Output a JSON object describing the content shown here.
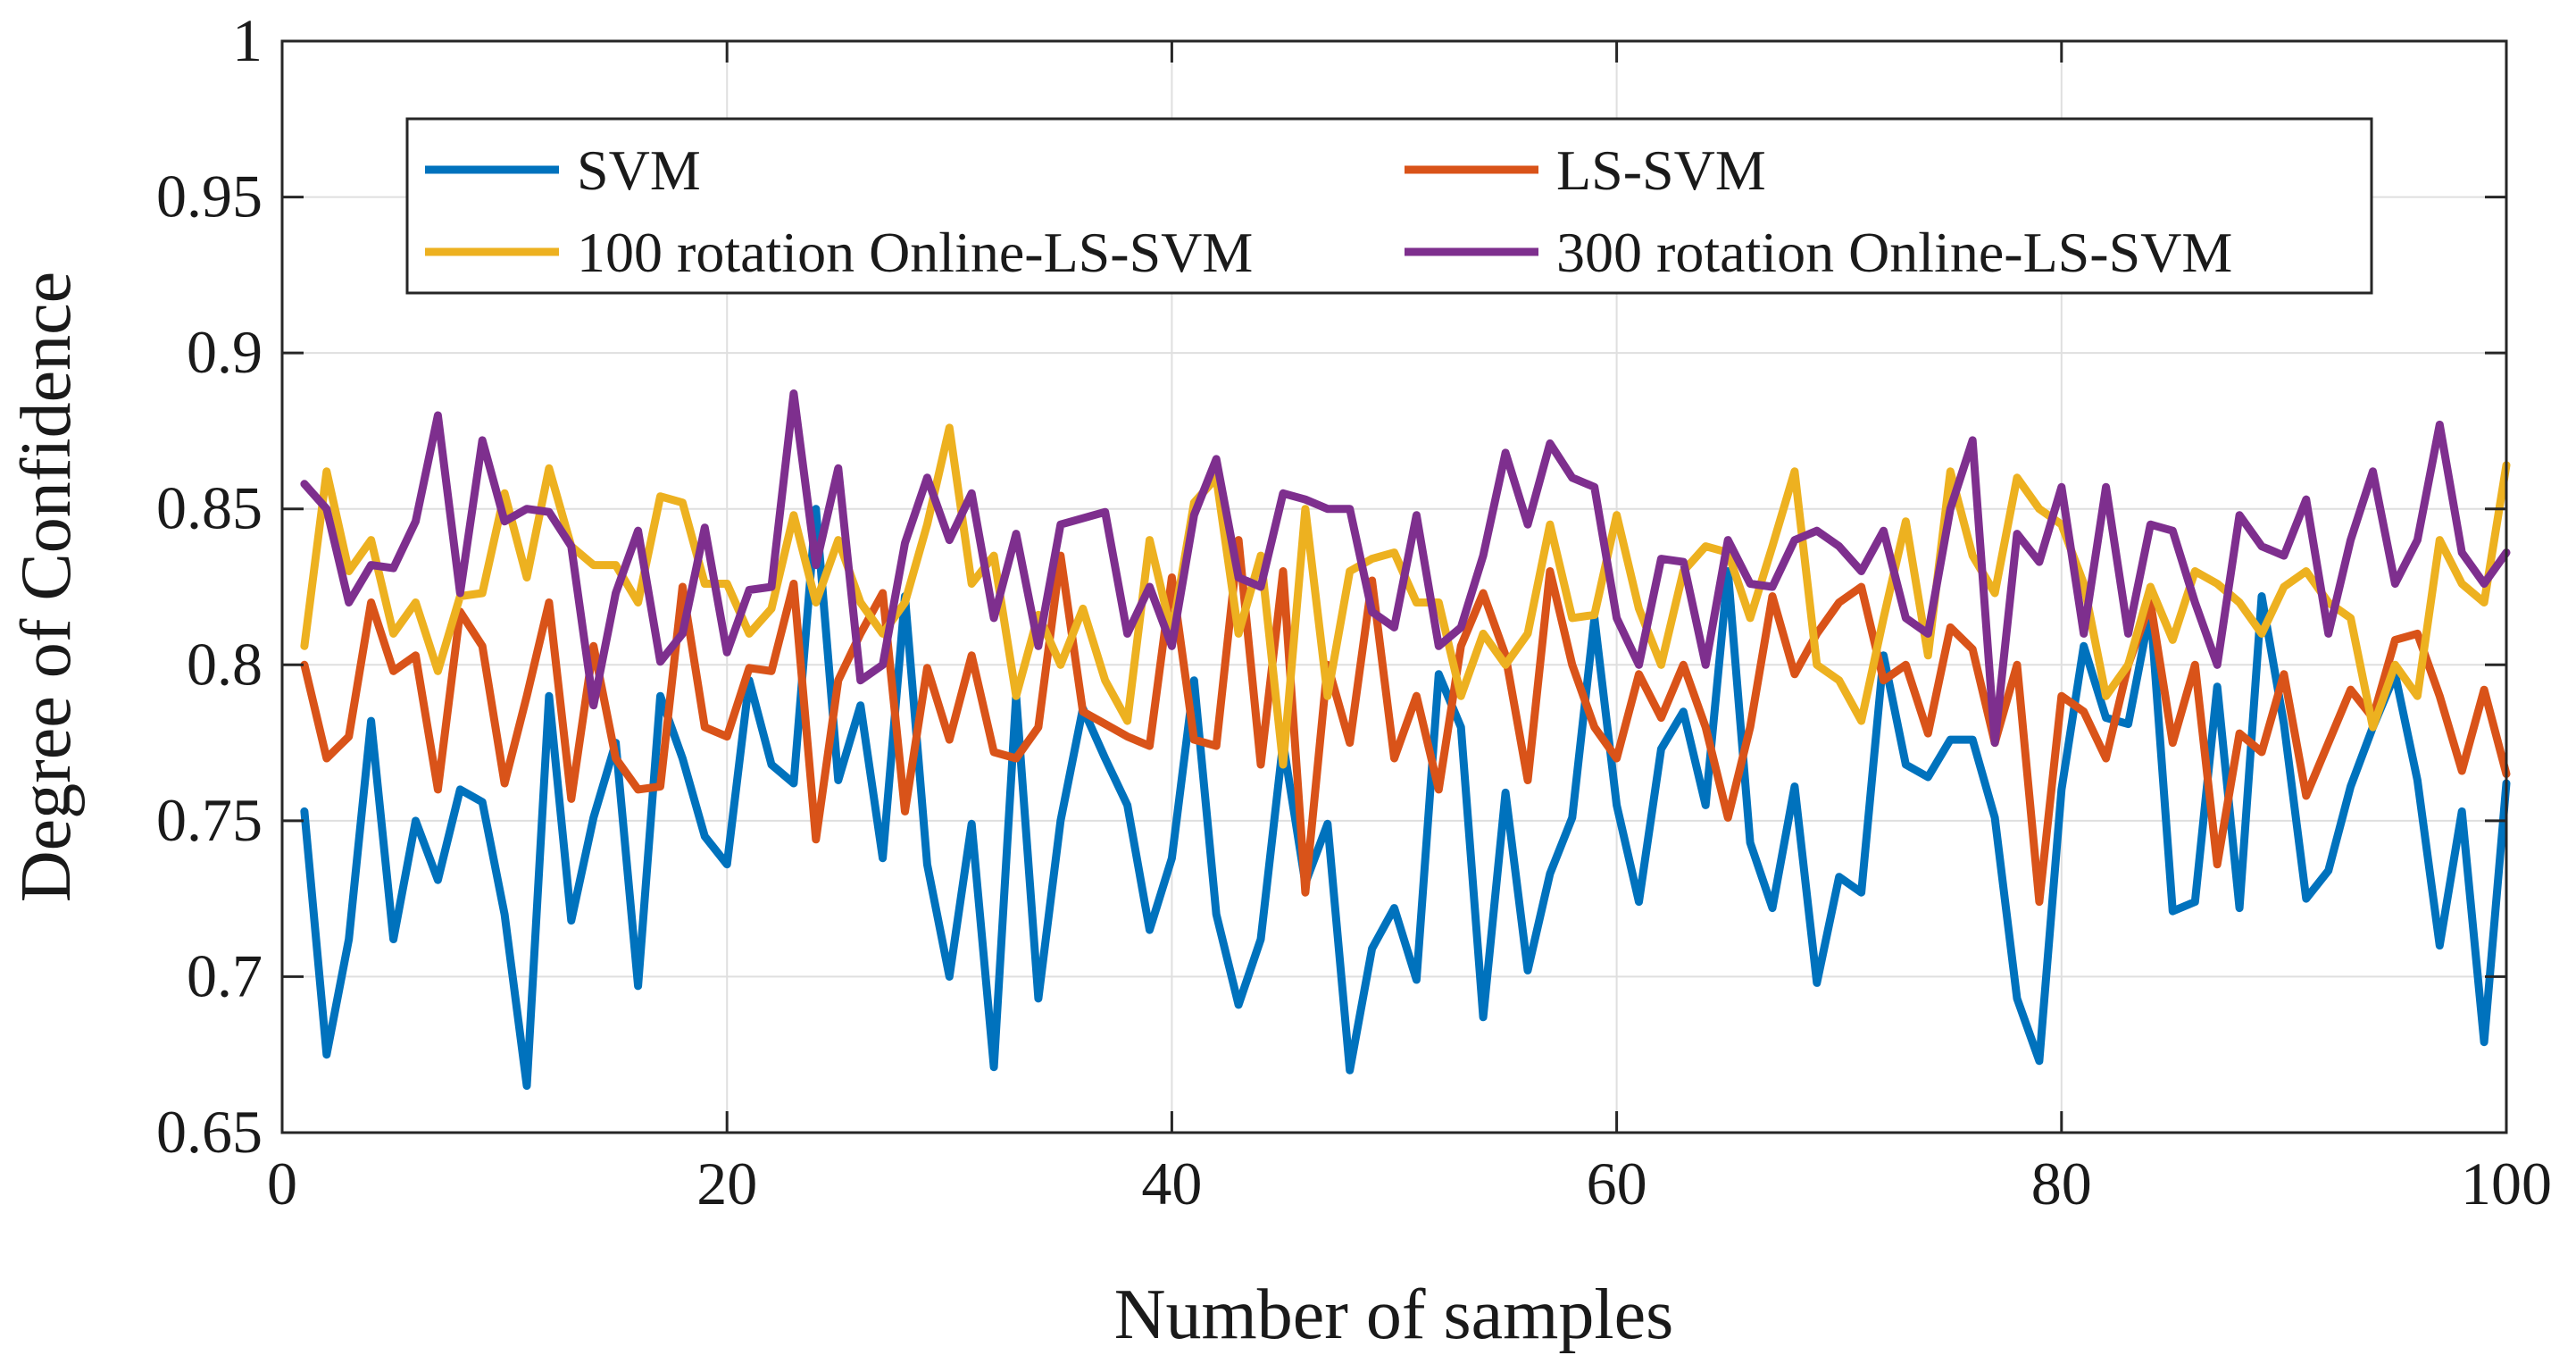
{
  "chart_data": {
    "type": "line",
    "title": "",
    "xlabel": "Number of samples",
    "ylabel": "Degree of Confidence",
    "xlim": [
      0,
      100
    ],
    "ylim": [
      0.65,
      1
    ],
    "xticks": [
      0,
      20,
      40,
      60,
      80,
      100
    ],
    "xtick_labels": [
      "0",
      "20",
      "40",
      "60",
      "80",
      "100"
    ],
    "yticks": [
      0.65,
      0.7,
      0.75,
      0.8,
      0.85,
      0.9,
      0.95,
      1
    ],
    "ytick_labels": [
      "0.65",
      "0.7",
      "0.75",
      "0.8",
      "0.85",
      "0.9",
      "0.95",
      "1"
    ],
    "grid": true,
    "legend_position": "top",
    "x": [
      1,
      2,
      3,
      4,
      5,
      6,
      7,
      8,
      9,
      10,
      11,
      12,
      13,
      14,
      15,
      16,
      17,
      18,
      19,
      20,
      21,
      22,
      23,
      24,
      25,
      26,
      27,
      28,
      29,
      30,
      31,
      32,
      33,
      34,
      35,
      36,
      37,
      38,
      39,
      40,
      41,
      42,
      43,
      44,
      45,
      46,
      47,
      48,
      49,
      50,
      51,
      52,
      53,
      54,
      55,
      56,
      57,
      58,
      59,
      60,
      61,
      62,
      63,
      64,
      65,
      66,
      67,
      68,
      69,
      70,
      71,
      72,
      73,
      74,
      75,
      76,
      77,
      78,
      79,
      80,
      81,
      82,
      83,
      84,
      85,
      86,
      87,
      88,
      89,
      90,
      91,
      92,
      93,
      94,
      95,
      96,
      97,
      98,
      99,
      100
    ],
    "series": [
      {
        "name": "SVM",
        "color": "#0072BD",
        "values": [
          0.753,
          0.675,
          0.712,
          0.782,
          0.712,
          0.75,
          0.731,
          0.76,
          0.756,
          0.72,
          0.665,
          0.79,
          0.718,
          0.751,
          0.775,
          0.697,
          0.79,
          0.77,
          0.745,
          0.736,
          0.795,
          0.768,
          0.762,
          0.85,
          0.763,
          0.787,
          0.738,
          0.822,
          0.736,
          0.7,
          0.749,
          0.671,
          0.79,
          0.693,
          0.75,
          0.786,
          0.77,
          0.755,
          0.715,
          0.738,
          0.795,
          0.72,
          0.691,
          0.712,
          0.775,
          0.73,
          0.749,
          0.67,
          0.709,
          0.722,
          0.699,
          0.797,
          0.78,
          0.687,
          0.759,
          0.702,
          0.733,
          0.751,
          0.815,
          0.755,
          0.724,
          0.773,
          0.785,
          0.755,
          0.83,
          0.743,
          0.722,
          0.761,
          0.698,
          0.732,
          0.727,
          0.803,
          0.768,
          0.764,
          0.776,
          0.776,
          0.751,
          0.693,
          0.673,
          0.76,
          0.806,
          0.783,
          0.781,
          0.818,
          0.721,
          0.724,
          0.793,
          0.722,
          0.822,
          0.781,
          0.725,
          0.734,
          0.761,
          0.78,
          0.797,
          0.763,
          0.71,
          0.753,
          0.679,
          0.762
        ]
      },
      {
        "name": "LS-SVM",
        "color": "#D95319",
        "values": [
          0.8,
          0.77,
          0.777,
          0.82,
          0.798,
          0.803,
          0.76,
          0.817,
          0.806,
          0.762,
          0.79,
          0.82,
          0.757,
          0.806,
          0.77,
          0.76,
          0.761,
          0.825,
          0.78,
          0.777,
          0.799,
          0.798,
          0.826,
          0.744,
          0.795,
          0.81,
          0.823,
          0.753,
          0.799,
          0.776,
          0.803,
          0.772,
          0.77,
          0.78,
          0.835,
          0.785,
          0.781,
          0.777,
          0.774,
          0.828,
          0.776,
          0.774,
          0.84,
          0.768,
          0.83,
          0.727,
          0.8,
          0.775,
          0.827,
          0.77,
          0.79,
          0.76,
          0.806,
          0.823,
          0.803,
          0.763,
          0.83,
          0.8,
          0.78,
          0.77,
          0.797,
          0.783,
          0.8,
          0.78,
          0.751,
          0.78,
          0.822,
          0.797,
          0.81,
          0.82,
          0.825,
          0.795,
          0.8,
          0.778,
          0.812,
          0.805,
          0.775,
          0.8,
          0.724,
          0.79,
          0.785,
          0.77,
          0.8,
          0.82,
          0.775,
          0.8,
          0.736,
          0.778,
          0.772,
          0.797,
          0.758,
          0.775,
          0.792,
          0.783,
          0.808,
          0.81,
          0.79,
          0.766,
          0.792,
          0.765
        ]
      },
      {
        "name": "100 rotation Online-LS-SVM",
        "color": "#EDB120",
        "values": [
          0.806,
          0.862,
          0.83,
          0.84,
          0.81,
          0.82,
          0.798,
          0.822,
          0.823,
          0.855,
          0.828,
          0.863,
          0.838,
          0.832,
          0.832,
          0.82,
          0.854,
          0.852,
          0.826,
          0.826,
          0.81,
          0.818,
          0.848,
          0.82,
          0.84,
          0.82,
          0.81,
          0.82,
          0.845,
          0.876,
          0.826,
          0.835,
          0.79,
          0.816,
          0.8,
          0.818,
          0.795,
          0.782,
          0.84,
          0.81,
          0.852,
          0.86,
          0.81,
          0.835,
          0.768,
          0.85,
          0.79,
          0.83,
          0.834,
          0.836,
          0.82,
          0.82,
          0.79,
          0.81,
          0.8,
          0.81,
          0.845,
          0.815,
          0.816,
          0.848,
          0.818,
          0.8,
          0.83,
          0.838,
          0.836,
          0.815,
          0.838,
          0.862,
          0.8,
          0.795,
          0.782,
          0.815,
          0.846,
          0.803,
          0.862,
          0.835,
          0.823,
          0.86,
          0.85,
          0.845,
          0.826,
          0.79,
          0.8,
          0.825,
          0.808,
          0.83,
          0.826,
          0.82,
          0.81,
          0.825,
          0.83,
          0.82,
          0.815,
          0.78,
          0.8,
          0.79,
          0.84,
          0.826,
          0.82,
          0.864
        ]
      },
      {
        "name": "300 rotation Online-LS-SVM",
        "color": "#7E2F8E",
        "values": [
          0.858,
          0.85,
          0.82,
          0.832,
          0.831,
          0.846,
          0.88,
          0.823,
          0.872,
          0.846,
          0.85,
          0.849,
          0.838,
          0.787,
          0.823,
          0.843,
          0.801,
          0.81,
          0.844,
          0.804,
          0.824,
          0.825,
          0.887,
          0.832,
          0.863,
          0.795,
          0.8,
          0.839,
          0.86,
          0.84,
          0.855,
          0.815,
          0.842,
          0.806,
          0.845,
          0.847,
          0.849,
          0.81,
          0.825,
          0.806,
          0.848,
          0.866,
          0.828,
          0.825,
          0.855,
          0.853,
          0.85,
          0.85,
          0.817,
          0.812,
          0.848,
          0.806,
          0.812,
          0.835,
          0.868,
          0.845,
          0.871,
          0.86,
          0.857,
          0.815,
          0.8,
          0.834,
          0.833,
          0.8,
          0.84,
          0.826,
          0.825,
          0.84,
          0.843,
          0.838,
          0.83,
          0.843,
          0.815,
          0.81,
          0.85,
          0.872,
          0.775,
          0.842,
          0.833,
          0.857,
          0.81,
          0.857,
          0.81,
          0.845,
          0.843,
          0.82,
          0.8,
          0.848,
          0.838,
          0.835,
          0.853,
          0.81,
          0.84,
          0.862,
          0.826,
          0.84,
          0.877,
          0.836,
          0.826,
          0.836
        ]
      }
    ]
  }
}
